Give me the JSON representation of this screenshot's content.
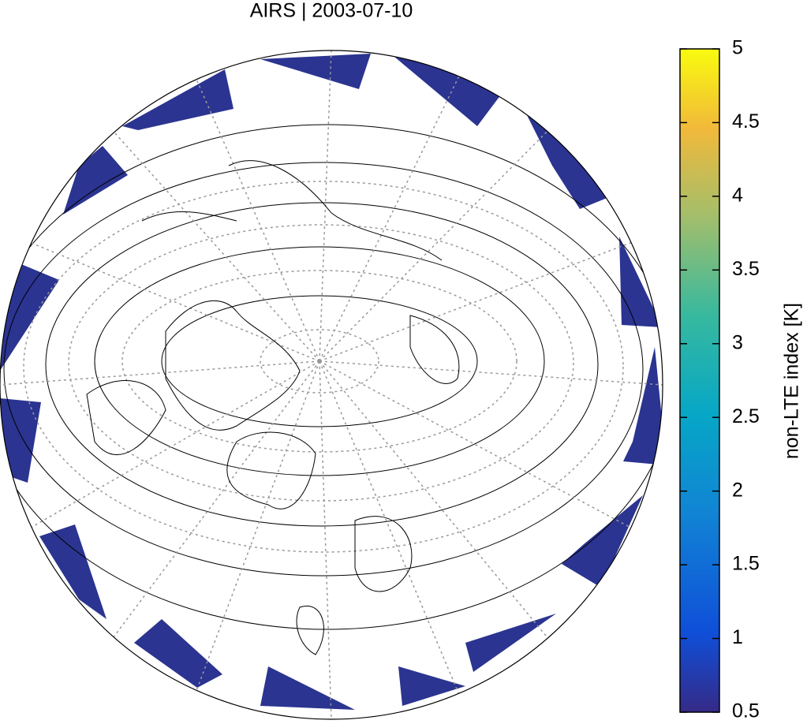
{
  "title": "AIRS | 2003-07-10",
  "colorbar": {
    "label": "non-LTE index [K]",
    "lim": [
      0.5,
      5
    ],
    "ticks": [
      0.5,
      1,
      1.5,
      2,
      2.5,
      3,
      3.5,
      4,
      4.5,
      5
    ]
  }
}
